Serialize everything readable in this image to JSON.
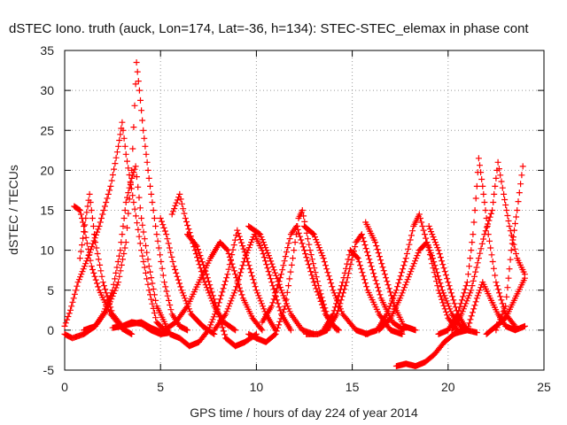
{
  "chart_data": {
    "type": "scatter",
    "title": "dSTEC Iono. truth (auck, Lon=174, Lat=-36, h=134): STEC-STEC_elemax in phase cont",
    "xlabel": "GPS time / hours of day 224 of year 2014",
    "ylabel": "dSTEC  / TECUs",
    "xlim": [
      0,
      25
    ],
    "ylim": [
      -5,
      35
    ],
    "xticks": [
      "0",
      "5",
      "10",
      "15",
      "20",
      "25"
    ],
    "yticks": [
      "-5",
      "0",
      "5",
      "10",
      "15",
      "20",
      "25",
      "30",
      "35"
    ],
    "grid": true,
    "legend": "none",
    "marker": "+",
    "color": "#ff0000",
    "series": [
      {
        "points": [
          [
            0.0,
            0.5
          ],
          [
            0.3,
            2.5
          ],
          [
            0.7,
            6
          ],
          [
            1.2,
            9
          ],
          [
            1.8,
            13
          ],
          [
            2.4,
            18
          ],
          [
            2.8,
            23
          ],
          [
            3.0,
            26
          ],
          [
            3.2,
            22
          ],
          [
            3.6,
            16
          ],
          [
            4.0,
            10
          ],
          [
            4.4,
            5
          ],
          [
            4.8,
            1
          ],
          [
            5.2,
            0
          ]
        ]
      },
      {
        "points": [
          [
            0.5,
            15.5
          ],
          [
            0.8,
            15
          ],
          [
            1.0,
            13
          ],
          [
            1.4,
            8
          ],
          [
            1.8,
            5
          ],
          [
            2.4,
            2
          ],
          [
            3.0,
            0.2
          ],
          [
            3.5,
            -0.5
          ]
        ]
      },
      {
        "points": [
          [
            1.0,
            0
          ],
          [
            1.6,
            0.5
          ],
          [
            2.0,
            2
          ],
          [
            2.5,
            5
          ],
          [
            2.9,
            10
          ],
          [
            3.2,
            16
          ],
          [
            3.5,
            19
          ],
          [
            3.7,
            20.5
          ],
          [
            4.0,
            14
          ],
          [
            4.4,
            8
          ],
          [
            4.8,
            3
          ],
          [
            5.3,
            0.5
          ]
        ]
      },
      {
        "points": [
          [
            0.8,
            9
          ],
          [
            1.1,
            14
          ],
          [
            1.3,
            17
          ],
          [
            1.6,
            11
          ],
          [
            2.0,
            6
          ],
          [
            2.5,
            2
          ],
          [
            3.0,
            0.5
          ],
          [
            3.5,
            0.8
          ],
          [
            4.0,
            1
          ],
          [
            4.5,
            0.3
          ],
          [
            5.0,
            -0.2
          ]
        ]
      },
      {
        "points": [
          [
            0.0,
            -0.5
          ],
          [
            0.4,
            -1
          ],
          [
            1.0,
            -0.5
          ],
          [
            1.6,
            0.5
          ],
          [
            2.2,
            2.5
          ],
          [
            2.8,
            6
          ],
          [
            3.2,
            11
          ],
          [
            3.5,
            20
          ],
          [
            3.75,
            33.5
          ],
          [
            3.9,
            30
          ],
          [
            4.1,
            25
          ],
          [
            4.4,
            19
          ],
          [
            4.8,
            12
          ],
          [
            5.2,
            6
          ],
          [
            5.6,
            2
          ],
          [
            6.0,
            0.5
          ],
          [
            6.4,
            0
          ]
        ]
      },
      {
        "points": [
          [
            2.5,
            0.3
          ],
          [
            3.0,
            0.5
          ],
          [
            3.5,
            1
          ],
          [
            4.0,
            0.8
          ],
          [
            4.5,
            0
          ],
          [
            5.0,
            -0.5
          ],
          [
            5.5,
            -0.3
          ]
        ]
      },
      {
        "points": [
          [
            5.0,
            14
          ],
          [
            5.3,
            12
          ],
          [
            5.7,
            8
          ],
          [
            6.1,
            5
          ],
          [
            6.6,
            2
          ],
          [
            7.2,
            0.5
          ],
          [
            7.8,
            -0.5
          ]
        ]
      },
      {
        "points": [
          [
            5.6,
            14.5
          ],
          [
            6.0,
            17
          ],
          [
            6.3,
            14
          ],
          [
            6.8,
            10
          ],
          [
            7.3,
            6
          ],
          [
            7.8,
            3
          ],
          [
            8.3,
            1
          ],
          [
            8.9,
            0
          ]
        ]
      },
      {
        "points": [
          [
            5.2,
            0
          ],
          [
            5.8,
            1
          ],
          [
            6.4,
            3
          ],
          [
            7.0,
            6
          ],
          [
            7.6,
            9
          ],
          [
            8.1,
            11
          ],
          [
            8.5,
            10
          ],
          [
            8.9,
            7
          ],
          [
            9.3,
            4
          ],
          [
            9.8,
            1.5
          ],
          [
            10.3,
            0
          ]
        ]
      },
      {
        "points": [
          [
            5.5,
            -0.5
          ],
          [
            6.0,
            -1
          ],
          [
            6.5,
            -2
          ],
          [
            7.0,
            -1.5
          ],
          [
            7.5,
            0
          ],
          [
            8.0,
            3
          ],
          [
            8.5,
            7
          ],
          [
            9.0,
            12.5
          ],
          [
            9.5,
            9
          ],
          [
            10.0,
            5
          ],
          [
            10.5,
            2
          ],
          [
            11.0,
            0
          ]
        ]
      },
      {
        "points": [
          [
            6.4,
            12
          ],
          [
            6.9,
            10.5
          ],
          [
            7.4,
            7
          ],
          [
            7.9,
            3
          ],
          [
            8.4,
            -1
          ],
          [
            8.9,
            -2
          ],
          [
            9.4,
            -1.5
          ],
          [
            10.0,
            -0.5
          ]
        ]
      },
      {
        "points": [
          [
            7.8,
            0
          ],
          [
            8.4,
            2
          ],
          [
            8.9,
            5
          ],
          [
            9.4,
            9
          ],
          [
            9.9,
            12
          ],
          [
            10.3,
            10
          ],
          [
            10.8,
            6
          ],
          [
            11.3,
            2
          ],
          [
            11.8,
            0
          ]
        ]
      },
      {
        "points": [
          [
            9.6,
            -0.5
          ],
          [
            10.0,
            -1
          ],
          [
            10.5,
            -1.5
          ],
          [
            11.0,
            -0.5
          ],
          [
            11.5,
            3
          ],
          [
            11.9,
            9
          ],
          [
            12.2,
            14
          ],
          [
            12.4,
            15
          ],
          [
            12.8,
            10
          ],
          [
            13.3,
            5
          ],
          [
            13.8,
            1
          ],
          [
            14.3,
            0
          ]
        ]
      },
      {
        "points": [
          [
            9.6,
            13
          ],
          [
            10.2,
            12
          ],
          [
            10.7,
            9
          ],
          [
            11.3,
            5
          ],
          [
            11.8,
            2
          ],
          [
            12.4,
            0
          ],
          [
            13.0,
            -0.5
          ]
        ]
      },
      {
        "points": [
          [
            10.3,
            1
          ],
          [
            10.8,
            3
          ],
          [
            11.3,
            7
          ],
          [
            11.8,
            12
          ],
          [
            12.1,
            13
          ],
          [
            12.5,
            10
          ],
          [
            13.0,
            6
          ],
          [
            13.6,
            2
          ],
          [
            14.2,
            0
          ]
        ]
      },
      {
        "points": [
          [
            12.5,
            13
          ],
          [
            13.0,
            12
          ],
          [
            13.5,
            9
          ],
          [
            14.0,
            5
          ],
          [
            14.5,
            2
          ],
          [
            15.2,
            0
          ],
          [
            15.8,
            -0.5
          ]
        ]
      },
      {
        "points": [
          [
            12.6,
            -0.5
          ],
          [
            13.2,
            -0.5
          ],
          [
            13.7,
            0
          ],
          [
            14.2,
            2
          ],
          [
            14.7,
            6
          ],
          [
            15.2,
            11
          ],
          [
            15.5,
            12
          ],
          [
            16.0,
            8
          ],
          [
            16.5,
            4
          ],
          [
            17.1,
            1
          ],
          [
            17.7,
            0
          ]
        ]
      },
      {
        "points": [
          [
            13.5,
            0
          ],
          [
            14.0,
            2
          ],
          [
            14.5,
            6
          ],
          [
            14.9,
            10
          ],
          [
            15.3,
            9
          ],
          [
            15.8,
            5
          ],
          [
            16.4,
            2
          ],
          [
            17.0,
            0
          ],
          [
            17.6,
            -0.5
          ]
        ]
      },
      {
        "points": [
          [
            15.7,
            13.5
          ],
          [
            16.2,
            11
          ],
          [
            16.7,
            7
          ],
          [
            17.2,
            3
          ],
          [
            17.7,
            0.5
          ],
          [
            18.3,
            0
          ]
        ]
      },
      {
        "points": [
          [
            15.7,
            -0.5
          ],
          [
            16.3,
            0
          ],
          [
            16.8,
            2
          ],
          [
            17.3,
            5
          ],
          [
            17.8,
            9
          ],
          [
            18.2,
            13
          ],
          [
            18.5,
            14.5
          ],
          [
            19.0,
            10
          ],
          [
            19.5,
            5
          ],
          [
            20.0,
            1.5
          ],
          [
            20.5,
            0
          ]
        ]
      },
      {
        "points": [
          [
            16.4,
            0
          ],
          [
            17.0,
            1.5
          ],
          [
            17.5,
            4
          ],
          [
            18.0,
            7
          ],
          [
            18.5,
            10
          ],
          [
            18.9,
            11
          ],
          [
            19.2,
            9
          ],
          [
            19.7,
            5
          ],
          [
            20.2,
            2
          ],
          [
            20.8,
            0
          ]
        ]
      },
      {
        "points": [
          [
            17.3,
            -4.5
          ],
          [
            17.8,
            -4.2
          ],
          [
            18.3,
            -4.5
          ],
          [
            18.8,
            -4
          ],
          [
            19.3,
            -3
          ],
          [
            19.8,
            -1.5
          ],
          [
            20.3,
            -0.5
          ],
          [
            20.8,
            0
          ]
        ]
      },
      {
        "points": [
          [
            19.0,
            13
          ],
          [
            19.5,
            10
          ],
          [
            20.0,
            6
          ],
          [
            20.5,
            2
          ],
          [
            21.0,
            0
          ],
          [
            21.5,
            -0.3
          ]
        ]
      },
      {
        "points": [
          [
            19.5,
            -0.5
          ],
          [
            20.0,
            0
          ],
          [
            20.5,
            2
          ],
          [
            21.0,
            6
          ],
          [
            21.3,
            12
          ],
          [
            21.5,
            18
          ],
          [
            21.6,
            21.5
          ],
          [
            21.8,
            18
          ],
          [
            22.1,
            12
          ],
          [
            22.5,
            6
          ],
          [
            23.0,
            2
          ],
          [
            23.5,
            0.5
          ]
        ]
      },
      {
        "points": [
          [
            20.2,
            0
          ],
          [
            20.7,
            2
          ],
          [
            21.2,
            5
          ],
          [
            21.6,
            9
          ],
          [
            21.9,
            12
          ],
          [
            22.3,
            15
          ],
          [
            22.6,
            21
          ],
          [
            22.9,
            17
          ],
          [
            23.2,
            13
          ],
          [
            23.6,
            9
          ],
          [
            24.0,
            7
          ]
        ]
      },
      {
        "points": [
          [
            20.5,
            -0.3
          ],
          [
            21.0,
            0
          ],
          [
            21.5,
            4
          ],
          [
            21.8,
            6
          ],
          [
            22.2,
            4
          ],
          [
            22.6,
            2
          ],
          [
            23.0,
            0.5
          ],
          [
            23.5,
            0
          ],
          [
            24.0,
            0.5
          ]
        ]
      },
      {
        "points": [
          [
            22.5,
            0
          ],
          [
            23.0,
            3
          ],
          [
            23.3,
            10
          ],
          [
            23.6,
            15
          ],
          [
            23.9,
            20.5
          ]
        ]
      },
      {
        "points": [
          [
            22.0,
            -0.5
          ],
          [
            22.5,
            0.5
          ],
          [
            23.0,
            1.5
          ],
          [
            23.5,
            4
          ],
          [
            24.0,
            6.5
          ]
        ]
      }
    ]
  }
}
